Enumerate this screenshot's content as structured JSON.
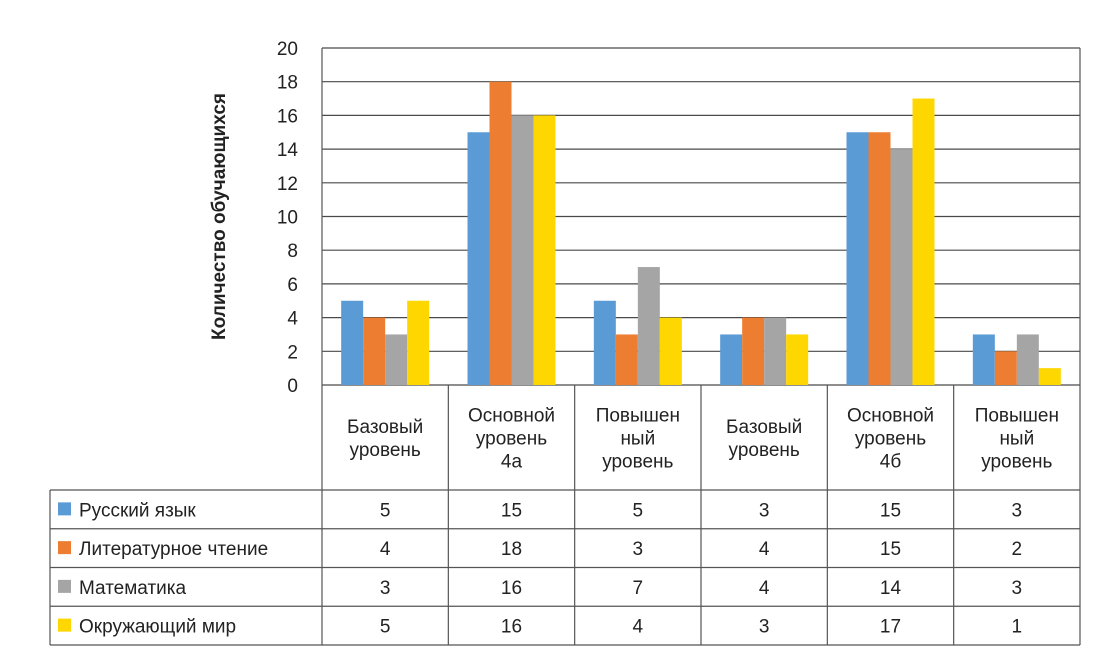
{
  "chart_data": {
    "type": "bar",
    "title": "",
    "xlabel": "",
    "ylabel": "Количество обучающихся",
    "ylim": [
      0,
      20
    ],
    "yticks": [
      0,
      2,
      4,
      6,
      8,
      10,
      12,
      14,
      16,
      18,
      20
    ],
    "grid": true,
    "legend": "data-table",
    "categories": [
      [
        "Базовый",
        "уровень"
      ],
      [
        "Основной",
        "уровень",
        "4а"
      ],
      [
        "Повышен",
        "ный",
        "уровень"
      ],
      [
        "Базовый",
        "уровень"
      ],
      [
        "Основной",
        "уровень",
        "4б"
      ],
      [
        "Повышен",
        "ный",
        "уровень"
      ]
    ],
    "series": [
      {
        "name": "Русский язык",
        "color": "#5B9BD5",
        "values": [
          5,
          15,
          5,
          3,
          15,
          3
        ]
      },
      {
        "name": "Литературное чтение",
        "color": "#ED7D31",
        "values": [
          4,
          18,
          3,
          4,
          15,
          2
        ]
      },
      {
        "name": "Математика",
        "color": "#A5A5A5",
        "values": [
          3,
          16,
          7,
          4,
          14,
          3
        ]
      },
      {
        "name": "Окружающий мир",
        "color": "#FFD700",
        "values": [
          5,
          16,
          4,
          3,
          17,
          1
        ]
      }
    ]
  }
}
